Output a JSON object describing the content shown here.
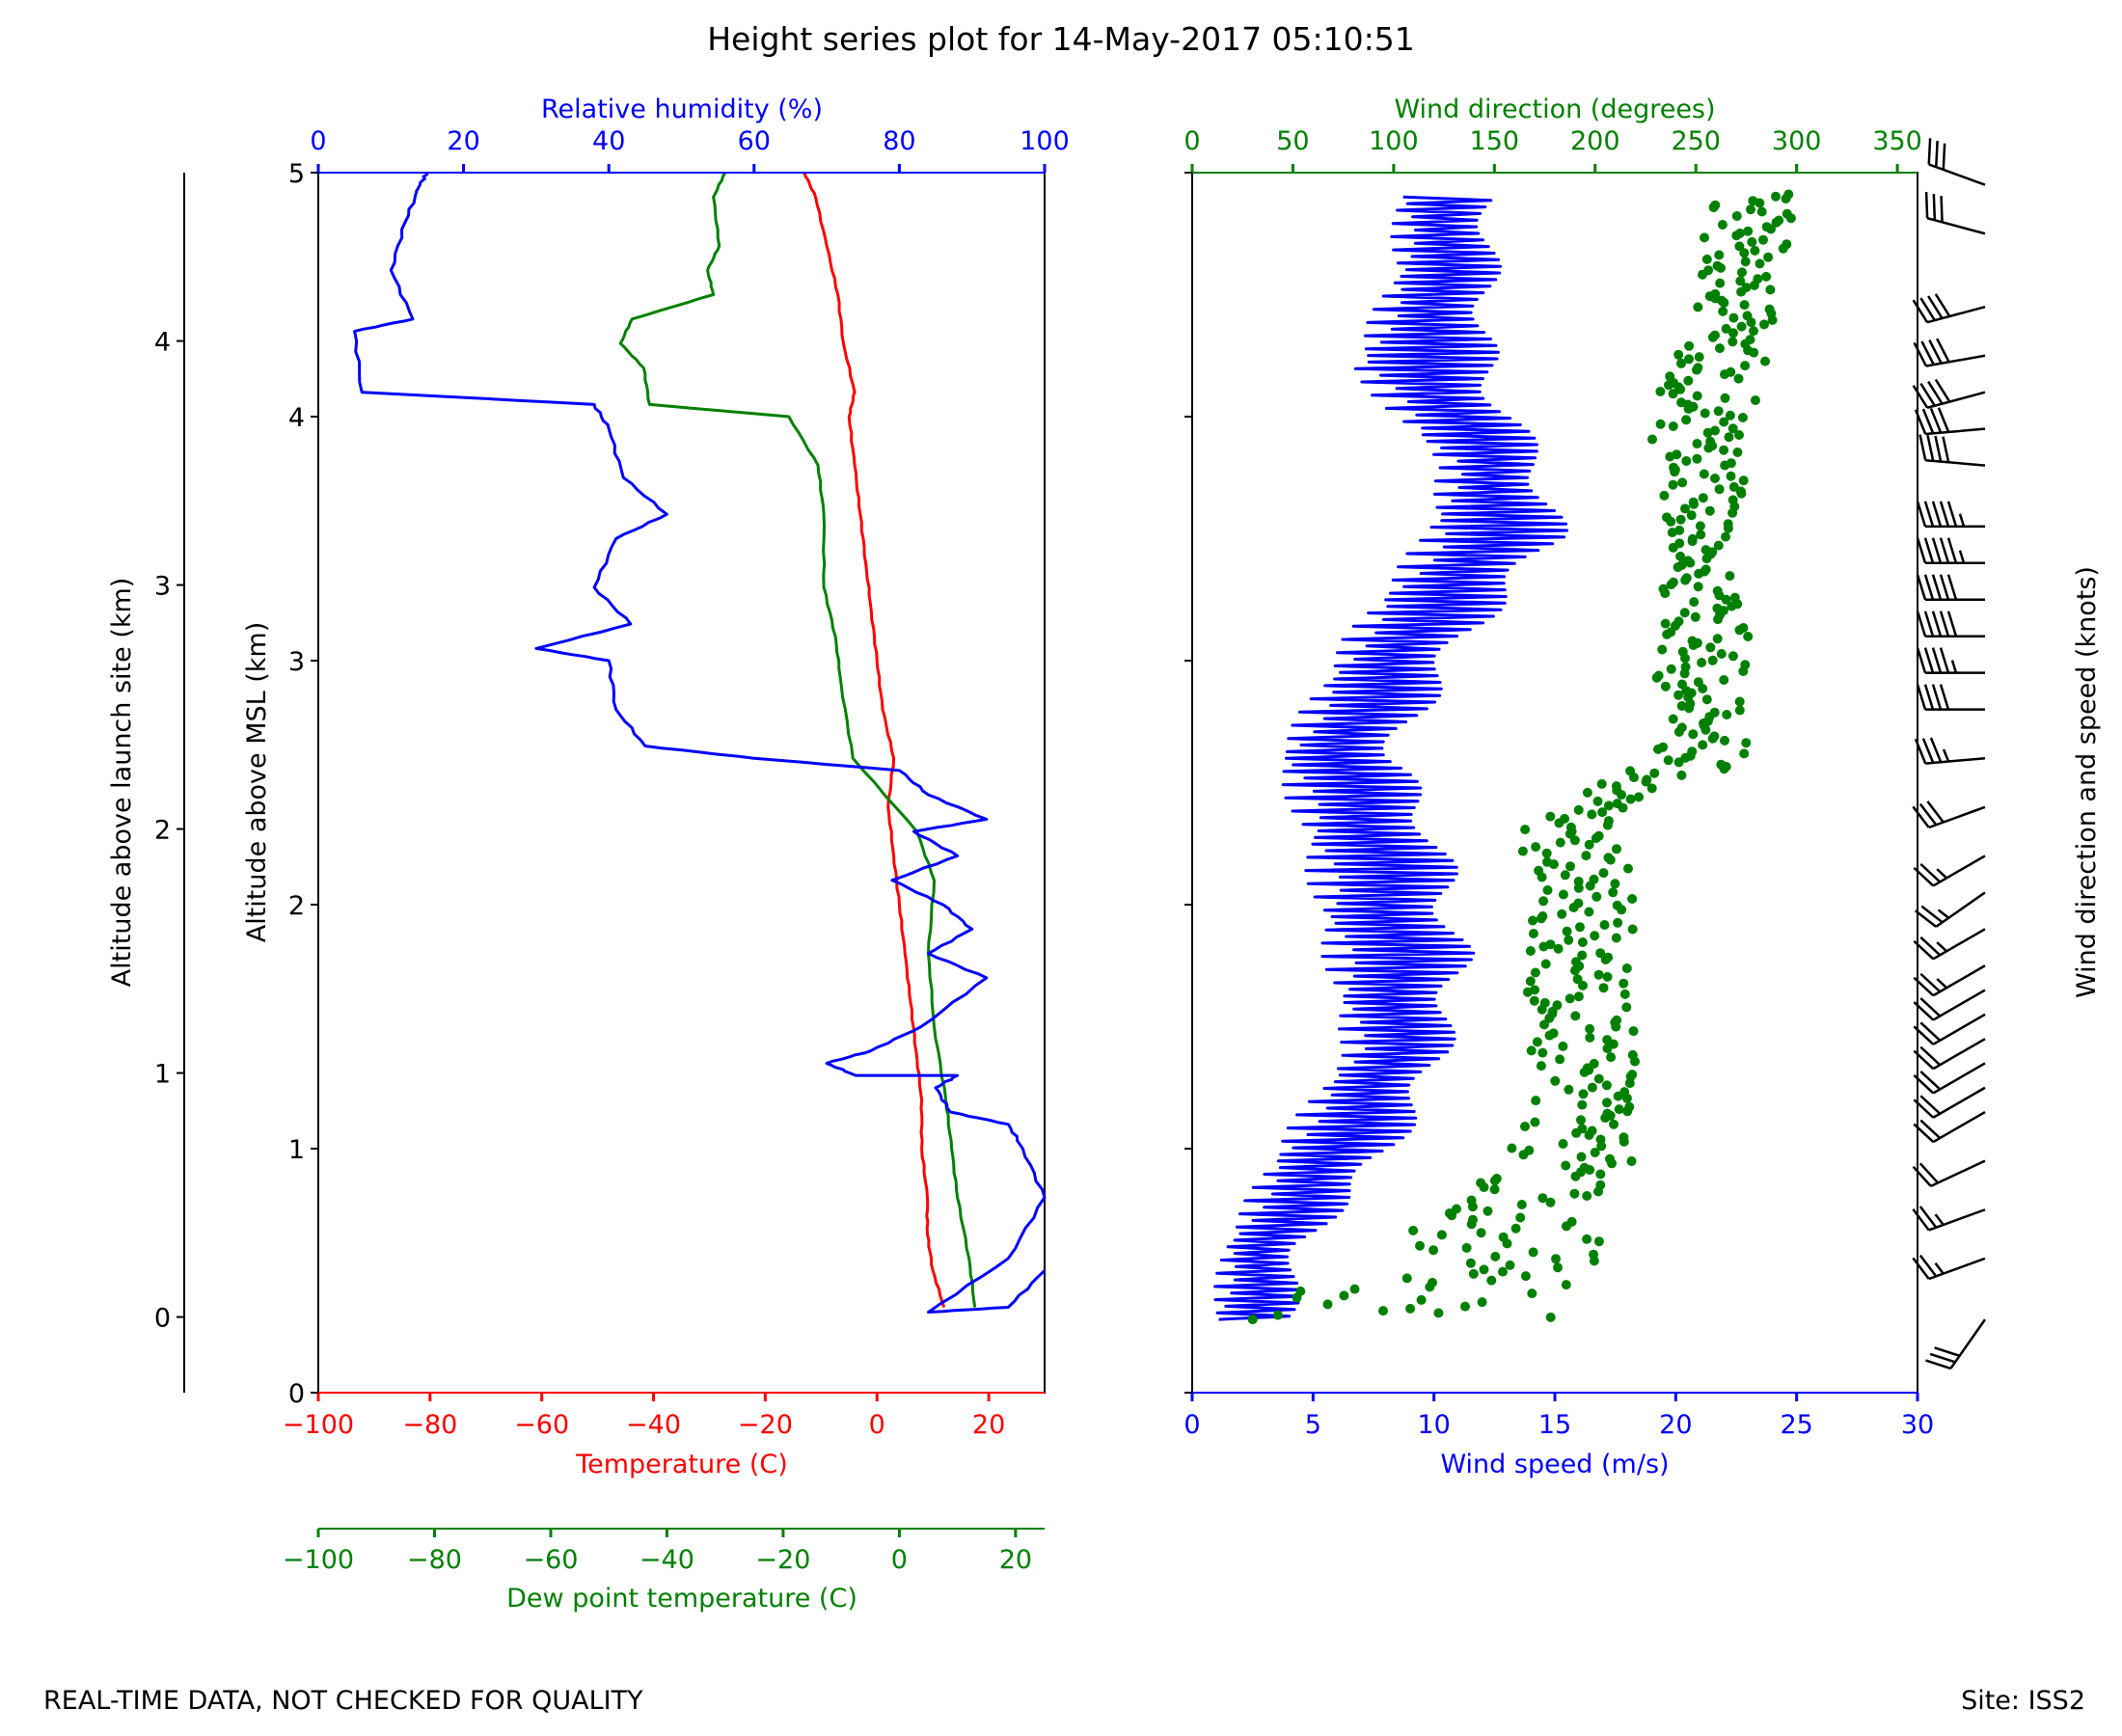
{
  "title": "Height series plot for 14-May-2017 05:10:51",
  "footer": {
    "left": "REAL-TIME DATA, NOT CHECKED FOR QUALITY",
    "right": "Site: ISS2"
  },
  "colors": {
    "temperature": "#ff0000",
    "dewpoint": "#008000",
    "humidity": "#0000ff",
    "wind_speed": "#0000ff",
    "wind_direction": "#008000",
    "barbs": "#000000"
  },
  "chart_data": [
    {
      "type": "line",
      "name": "thermodynamic-panel",
      "ylabel_msl": "Altitude above MSL (km)",
      "ylabel_launch": "Altitude above launch site (km)",
      "ylim": [
        0,
        5
      ],
      "yticks_msl": [
        "0",
        "1",
        "2",
        "3",
        "4",
        "5"
      ],
      "launch_site_offset_km": 0.31,
      "yticks_launch": [
        "0",
        "1",
        "2",
        "3",
        "4"
      ],
      "x_axes": {
        "temperature": {
          "label": "Temperature (C)",
          "lim": [
            -100,
            30
          ],
          "ticks": [
            "-100",
            "-80",
            "-60",
            "-40",
            "-20",
            "0",
            "20"
          ]
        },
        "dewpoint": {
          "label": "Dew point temperature (C)",
          "lim": [
            -100,
            25
          ],
          "ticks": [
            "-100",
            "-80",
            "-60",
            "-40",
            "-20",
            "0",
            "20"
          ]
        },
        "humidity": {
          "label": "Relative humidity (%)",
          "lim": [
            0,
            100
          ],
          "ticks": [
            "0",
            "20",
            "40",
            "60",
            "80",
            "100"
          ]
        }
      },
      "series": [
        {
          "name": "Temperature",
          "axis": "temperature",
          "points": [
            [
              12,
              0.35
            ],
            [
              10,
              0.5
            ],
            [
              9,
              0.65
            ],
            [
              9,
              0.8
            ],
            [
              8,
              1.0
            ],
            [
              8,
              1.2
            ],
            [
              7,
              1.4
            ],
            [
              6,
              1.6
            ],
            [
              5,
              1.8
            ],
            [
              4,
              2.0
            ],
            [
              3,
              2.2
            ],
            [
              2,
              2.4
            ],
            [
              3,
              2.6
            ],
            [
              1,
              2.8
            ],
            [
              0,
              3.0
            ],
            [
              -1,
              3.2
            ],
            [
              -2,
              3.4
            ],
            [
              -3,
              3.6
            ],
            [
              -4,
              3.8
            ],
            [
              -5,
              4.0
            ],
            [
              -4,
              4.1
            ],
            [
              -6,
              4.3
            ],
            [
              -7,
              4.5
            ],
            [
              -9,
              4.7
            ],
            [
              -11,
              4.9
            ],
            [
              -13,
              5.0
            ]
          ]
        },
        {
          "name": "Dew point temperature",
          "axis": "dewpoint",
          "points": [
            [
              13,
              0.35
            ],
            [
              12,
              0.55
            ],
            [
              10,
              0.8
            ],
            [
              9,
              1.0
            ],
            [
              8,
              1.2
            ],
            [
              6,
              1.5
            ],
            [
              5,
              1.8
            ],
            [
              6,
              2.1
            ],
            [
              3,
              2.3
            ],
            [
              -8,
              2.6
            ],
            [
              -10,
              2.9
            ],
            [
              -11,
              3.1
            ],
            [
              -13,
              3.3
            ],
            [
              -13,
              3.6
            ],
            [
              -14,
              3.8
            ],
            [
              -19,
              4.0
            ],
            [
              -43,
              4.05
            ],
            [
              -44,
              4.2
            ],
            [
              -48,
              4.3
            ],
            [
              -46,
              4.4
            ],
            [
              -32,
              4.5
            ],
            [
              -33,
              4.6
            ],
            [
              -31,
              4.7
            ],
            [
              -32,
              4.9
            ],
            [
              -30,
              5.0
            ]
          ]
        },
        {
          "name": "Relative humidity",
          "axis": "humidity",
          "points": [
            [
              100,
              0.5
            ],
            [
              95,
              0.35
            ],
            [
              84,
              0.33
            ],
            [
              95,
              0.55
            ],
            [
              100,
              0.8
            ],
            [
              97,
              1.0
            ],
            [
              95,
              1.1
            ],
            [
              87,
              1.15
            ],
            [
              85,
              1.25
            ],
            [
              88,
              1.3
            ],
            [
              74,
              1.3
            ],
            [
              70,
              1.35
            ],
            [
              76,
              1.4
            ],
            [
              83,
              1.5
            ],
            [
              92,
              1.7
            ],
            [
              84,
              1.8
            ],
            [
              90,
              1.9
            ],
            [
              86,
              2.0
            ],
            [
              79,
              2.1
            ],
            [
              88,
              2.2
            ],
            [
              82,
              2.3
            ],
            [
              92,
              2.35
            ],
            [
              84,
              2.45
            ],
            [
              80,
              2.55
            ],
            [
              60,
              2.6
            ],
            [
              45,
              2.65
            ],
            [
              41,
              2.8
            ],
            [
              40,
              3.0
            ],
            [
              30,
              3.05
            ],
            [
              43,
              3.15
            ],
            [
              38,
              3.3
            ],
            [
              41,
              3.5
            ],
            [
              48,
              3.6
            ],
            [
              42,
              3.75
            ],
            [
              40,
              3.95
            ],
            [
              38,
              4.05
            ],
            [
              6,
              4.1
            ],
            [
              5,
              4.35
            ],
            [
              13,
              4.4
            ],
            [
              10,
              4.6
            ],
            [
              12,
              4.8
            ],
            [
              14,
              4.95
            ],
            [
              15,
              5.0
            ]
          ]
        }
      ]
    },
    {
      "type": "scatter",
      "name": "wind-panel",
      "ylim": [
        0,
        5
      ],
      "x_axes": {
        "speed": {
          "label": "Wind speed (m/s)",
          "lim": [
            0,
            30
          ],
          "ticks": [
            "0",
            "5",
            "10",
            "15",
            "20",
            "25",
            "30"
          ]
        },
        "direction": {
          "label": "Wind direction (degrees)",
          "lim": [
            0,
            360
          ],
          "ticks": [
            "0",
            "50",
            "100",
            "150",
            "200",
            "250",
            "300",
            "350"
          ]
        }
      },
      "series": [
        {
          "name": "Wind speed",
          "style": "line",
          "envelope": [
            [
              0.5,
              4.5,
              0.3
            ],
            [
              1,
              5,
              0.6
            ],
            [
              3,
              9,
              1.0
            ],
            [
              6,
              11,
              1.4
            ],
            [
              5,
              12,
              1.8
            ],
            [
              4,
              11,
              2.3
            ],
            [
              3,
              9,
              2.6
            ],
            [
              6,
              12,
              3.1
            ],
            [
              9,
              16,
              3.5
            ],
            [
              10,
              15,
              3.8
            ],
            [
              6,
              13,
              4.2
            ],
            [
              8,
              13,
              4.6
            ],
            [
              8,
              13,
              4.9
            ]
          ]
        },
        {
          "name": "Wind direction",
          "style": "scatter",
          "envelope": [
            [
              30,
              190,
              0.3
            ],
            [
              80,
              200,
              0.55
            ],
            [
              150,
              220,
              0.9
            ],
            [
              170,
              220,
              1.25
            ],
            [
              165,
              220,
              1.7
            ],
            [
              170,
              220,
              2.0
            ],
            [
              160,
              215,
              2.35
            ],
            [
              230,
              275,
              2.6
            ],
            [
              230,
              280,
              3.0
            ],
            [
              235,
              270,
              3.5
            ],
            [
              225,
              280,
              4.0
            ],
            [
              250,
              290,
              4.4
            ],
            [
              255,
              300,
              4.9
            ]
          ]
        }
      ],
      "barbs_label": "Wind direction and speed (knots)",
      "barbs": [
        [
          0.3,
          215,
          30
        ],
        [
          0.55,
          250,
          25
        ],
        [
          0.75,
          250,
          25
        ],
        [
          0.95,
          245,
          20
        ],
        [
          1.15,
          240,
          20
        ],
        [
          1.25,
          240,
          20
        ],
        [
          1.35,
          240,
          20
        ],
        [
          1.45,
          240,
          20
        ],
        [
          1.55,
          240,
          20
        ],
        [
          1.65,
          240,
          20
        ],
        [
          1.75,
          240,
          25
        ],
        [
          1.9,
          240,
          25
        ],
        [
          2.05,
          235,
          25
        ],
        [
          2.2,
          240,
          25
        ],
        [
          2.4,
          250,
          30
        ],
        [
          2.6,
          265,
          35
        ],
        [
          2.8,
          270,
          40
        ],
        [
          2.95,
          270,
          45
        ],
        [
          3.1,
          270,
          50
        ],
        [
          3.25,
          270,
          50
        ],
        [
          3.4,
          270,
          55
        ],
        [
          3.55,
          270,
          55
        ],
        [
          3.8,
          275,
          40
        ],
        [
          3.95,
          265,
          40
        ],
        [
          4.1,
          255,
          40
        ],
        [
          4.25,
          260,
          40
        ],
        [
          4.45,
          255,
          40
        ],
        [
          4.75,
          285,
          30
        ],
        [
          4.95,
          290,
          30
        ]
      ]
    }
  ]
}
